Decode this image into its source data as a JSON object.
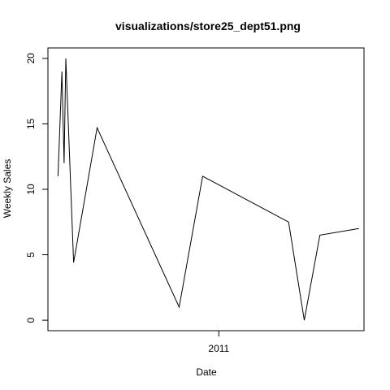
{
  "chart_data": {
    "type": "line",
    "title": "visualizations/store25_dept51.png",
    "xlabel": "Date",
    "ylabel": "Weekly Sales",
    "x_ticks": [
      {
        "value": "2011-01-01",
        "label": "2011"
      }
    ],
    "y_ticks": [
      0,
      5,
      10,
      15,
      20
    ],
    "xlim": [
      "2010-03-01",
      "2011-09-18"
    ],
    "ylim": [
      -0.8,
      20.8
    ],
    "series": [
      {
        "values": [
          {
            "x": "2010-03-19",
            "y": 11
          },
          {
            "x": "2010-03-26",
            "y": 19
          },
          {
            "x": "2010-03-30",
            "y": 12
          },
          {
            "x": "2010-04-02",
            "y": 20
          },
          {
            "x": "2010-04-16",
            "y": 4.4
          },
          {
            "x": "2010-05-28",
            "y": 14.7
          },
          {
            "x": "2010-10-22",
            "y": 1
          },
          {
            "x": "2010-12-03",
            "y": 11
          },
          {
            "x": "2011-05-06",
            "y": 7.5
          },
          {
            "x": "2011-06-03",
            "y": 0
          },
          {
            "x": "2011-07-01",
            "y": 6.5
          },
          {
            "x": "2011-09-09",
            "y": 7
          }
        ]
      }
    ],
    "grid": false,
    "colors": {
      "line": "#000000",
      "axis": "#000000",
      "background": "#ffffff"
    }
  }
}
